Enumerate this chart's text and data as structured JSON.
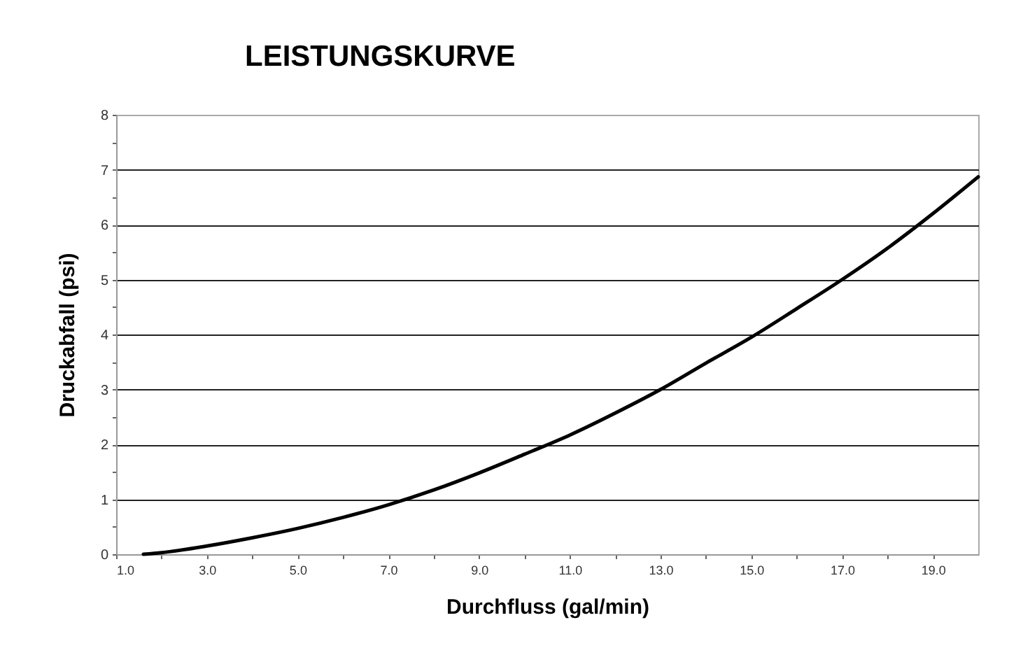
{
  "chart_data": {
    "type": "line",
    "title": "LEISTUNGSKURVE",
    "xlabel": "Durchfluss (gal/min)",
    "ylabel": "Druckabfall (psi)",
    "x": [
      1.6,
      2,
      3,
      4,
      5,
      6,
      7,
      8,
      9,
      10,
      11,
      12,
      13,
      14,
      15,
      16,
      17,
      18,
      19,
      20
    ],
    "series": [
      {
        "color": "#000000",
        "values": [
          0,
          0.03,
          0.15,
          0.3,
          0.47,
          0.67,
          0.9,
          1.17,
          1.48,
          1.82,
          2.17,
          2.57,
          3.0,
          3.48,
          3.95,
          4.47,
          5.0,
          5.57,
          6.2,
          6.87
        ]
      }
    ],
    "xlim": [
      1,
      20
    ],
    "xticks": [
      {
        "value": 1,
        "label": "1.0"
      },
      {
        "value": 2,
        "label": null
      },
      {
        "value": 3,
        "label": "3.0"
      },
      {
        "value": 4,
        "label": null
      },
      {
        "value": 5,
        "label": "5.0"
      },
      {
        "value": 6,
        "label": null
      },
      {
        "value": 7,
        "label": "7.0"
      },
      {
        "value": 8,
        "label": null
      },
      {
        "value": 9,
        "label": "9.0"
      },
      {
        "value": 10,
        "label": null
      },
      {
        "value": 11,
        "label": "11.0"
      },
      {
        "value": 12,
        "label": null
      },
      {
        "value": 13,
        "label": "13.0"
      },
      {
        "value": 14,
        "label": null
      },
      {
        "value": 15,
        "label": "15.0"
      },
      {
        "value": 16,
        "label": null
      },
      {
        "value": 17,
        "label": "17.0"
      },
      {
        "value": 18,
        "label": null
      },
      {
        "value": 19,
        "label": "19.0"
      }
    ],
    "ylim": [
      0,
      8
    ],
    "yticks": [
      0,
      {
        "value": 0.5,
        "label": null
      },
      1,
      {
        "value": 1.5,
        "label": null
      },
      2,
      {
        "value": 2.5,
        "label": null
      },
      3,
      {
        "value": 3.5,
        "label": null
      },
      4,
      {
        "value": 4.5,
        "label": null
      },
      5,
      {
        "value": 5.5,
        "label": null
      },
      6,
      {
        "value": 6.5,
        "label": null
      },
      7,
      {
        "value": 7.5,
        "label": null
      },
      8
    ],
    "grid": "y",
    "marker": "none",
    "line_style": "solid"
  }
}
